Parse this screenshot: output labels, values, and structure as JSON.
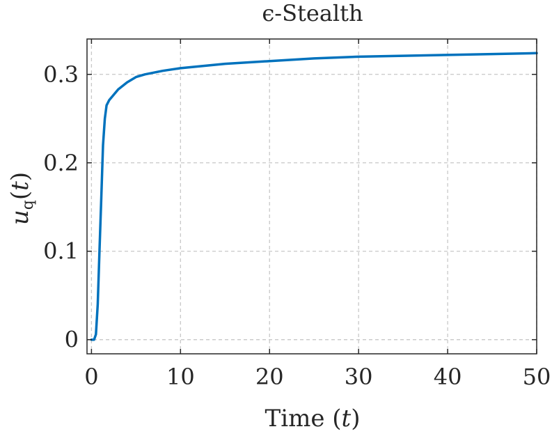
{
  "chart_data": {
    "type": "line",
    "title": "ϵ-Stealth",
    "xlabel": {
      "text": "Time",
      "var": "t"
    },
    "ylabel": {
      "base": "u",
      "sub": "q",
      "var": "t"
    },
    "xlim": [
      -0.5,
      50
    ],
    "ylim": [
      -0.016,
      0.34
    ],
    "xticks": [
      0,
      10,
      20,
      30,
      40,
      50
    ],
    "xtick_labels": [
      "0",
      "10",
      "20",
      "30",
      "40",
      "50"
    ],
    "yticks": [
      0,
      0.1,
      0.2,
      0.3
    ],
    "ytick_labels": [
      "0",
      "0.1",
      "0.2",
      "0.3"
    ],
    "grid": true,
    "series_color": "#0072BD",
    "series": [
      {
        "x": [
          0,
          0.3,
          0.5,
          0.7,
          0.9,
          1.1,
          1.3,
          1.5,
          1.7,
          2.0,
          2.5,
          3,
          4,
          5,
          6,
          8,
          10,
          12,
          15,
          20,
          25,
          30,
          35,
          40,
          45,
          50
        ],
        "y": [
          0,
          0,
          0.006,
          0.04,
          0.1,
          0.16,
          0.22,
          0.25,
          0.265,
          0.271,
          0.277,
          0.283,
          0.291,
          0.297,
          0.3,
          0.304,
          0.307,
          0.309,
          0.312,
          0.315,
          0.318,
          0.32,
          0.321,
          0.322,
          0.323,
          0.324
        ]
      }
    ]
  }
}
